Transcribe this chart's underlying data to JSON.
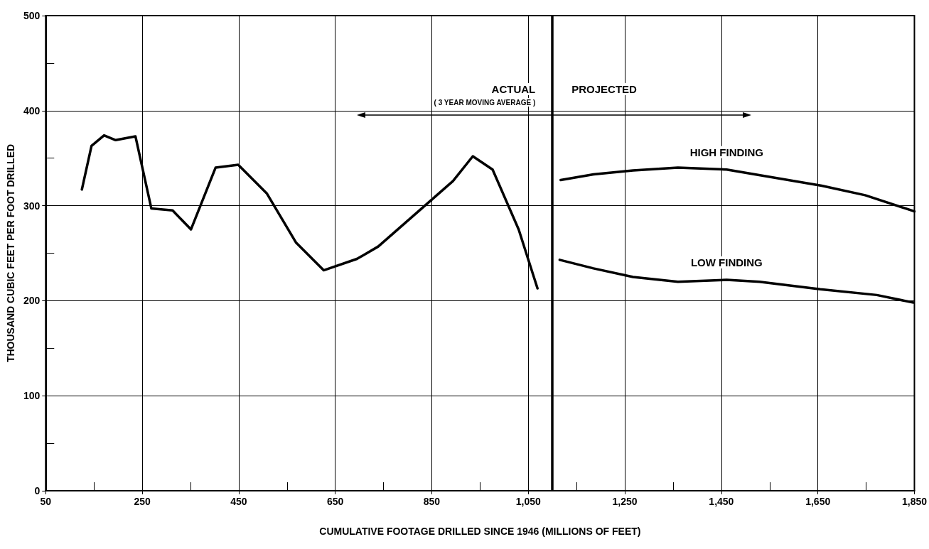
{
  "chart_data": {
    "type": "line",
    "xlabel": "CUMULATIVE FOOTAGE DRILLED SINCE 1946 (MILLIONS OF FEET)",
    "ylabel": "THOUSAND CUBIC FEET PER FOOT DRILLED",
    "xlim": [
      50,
      1850
    ],
    "xticks": [
      50,
      {
        "value": 150,
        "label": null
      },
      250,
      {
        "value": 350,
        "label": null
      },
      450,
      {
        "value": 550,
        "label": null
      },
      650,
      {
        "value": 750,
        "label": null
      },
      850,
      {
        "value": 950,
        "label": null
      },
      {
        "value": 1050,
        "label": "1,050"
      },
      {
        "value": 1150,
        "label": null
      },
      {
        "value": 1250,
        "label": "1,250"
      },
      {
        "value": 1350,
        "label": null
      },
      {
        "value": 1450,
        "label": "1,450"
      },
      {
        "value": 1550,
        "label": null
      },
      {
        "value": 1650,
        "label": "1,650"
      },
      {
        "value": 1750,
        "label": null
      },
      {
        "value": 1850,
        "label": "1,850"
      }
    ],
    "ylim": [
      0,
      500
    ],
    "yticks": [
      0,
      {
        "value": 50,
        "label": null
      },
      100,
      {
        "value": 150,
        "label": null
      },
      200,
      {
        "value": 250,
        "label": null
      },
      300,
      {
        "value": 350,
        "label": null
      },
      400,
      {
        "value": 450,
        "label": null
      },
      500
    ],
    "grid": true,
    "legend": false,
    "marker": "none",
    "line_style": "solid",
    "series": [
      {
        "color": "#000000",
        "x": [
          125,
          145,
          171,
          195,
          236,
          269,
          313,
          351,
          402,
          449,
          508,
          569,
          626,
          695,
          739,
          894,
          935,
          976,
          1030,
          1069
        ],
        "values": [
          317,
          363,
          374,
          369,
          373,
          297,
          295,
          275,
          340,
          343,
          313,
          261,
          232,
          244,
          257,
          326,
          352,
          338,
          275,
          213
        ]
      },
      {
        "name": "HIGH FINDING",
        "color": "#000000",
        "x": [
          1117,
          1185,
          1267,
          1360,
          1461,
          1658,
          1748,
          1850
        ],
        "values": [
          327,
          333,
          337,
          340,
          338,
          321,
          311,
          294
        ]
      },
      {
        "name": "LOW FINDING",
        "color": "#000000",
        "x": [
          1115,
          1185,
          1267,
          1360,
          1461,
          1529,
          1655,
          1772,
          1848
        ],
        "values": [
          243,
          234,
          225,
          220,
          222,
          220,
          212,
          206,
          198
        ]
      }
    ],
    "ref_lines": [
      {
        "axis": "x",
        "value": 1100,
        "color": "#000000"
      }
    ],
    "annotations": [
      "ACTUAL",
      "( 3 YEAR MOVING AVERAGE )",
      "PROJECTED"
    ]
  }
}
